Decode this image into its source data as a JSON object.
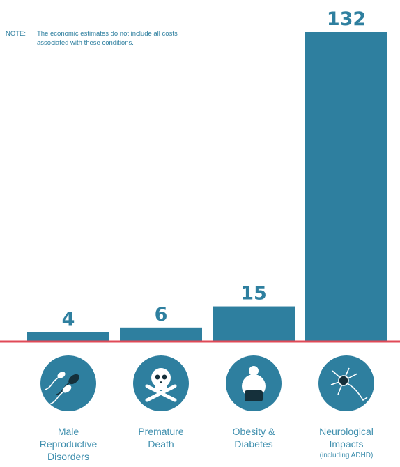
{
  "note": {
    "prefix": "NOTE:",
    "text": "The economic estimates do not include all costs associated with these conditions."
  },
  "colors": {
    "bar": "#2e7f9f",
    "baseline": "#e04a57",
    "icon_circle": "#2e7f9f",
    "text": "#2e7f9f"
  },
  "chart_data": {
    "type": "bar",
    "title": "",
    "xlabel": "",
    "ylabel": "",
    "ylim": [
      0,
      132
    ],
    "grid": false,
    "categories": [
      {
        "lines": [
          "Male",
          "Reproductive",
          "Disorders"
        ],
        "sub": "",
        "icon": "sperm-icon"
      },
      {
        "lines": [
          "Premature",
          "Death"
        ],
        "sub": "",
        "icon": "skull-crossbones-icon"
      },
      {
        "lines": [
          "Obesity &",
          "Diabetes"
        ],
        "sub": "",
        "icon": "obese-person-icon"
      },
      {
        "lines": [
          "Neurological",
          "Impacts"
        ],
        "sub": "(including ADHD)",
        "icon": "neuron-icon"
      }
    ],
    "values": [
      4,
      6,
      15,
      132
    ],
    "data_labels": [
      "4",
      "6",
      "15",
      "132"
    ]
  }
}
